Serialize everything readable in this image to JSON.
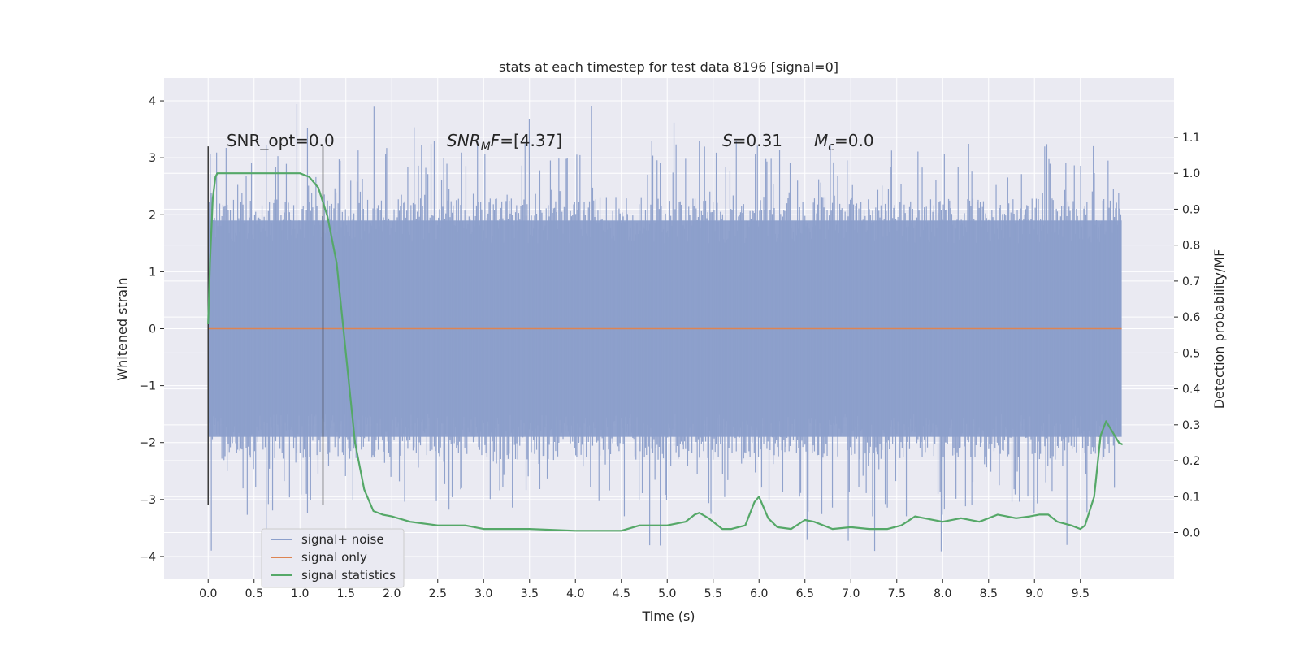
{
  "chart_data": {
    "type": "line",
    "title": "stats at each timestep for test data 8196 [signal=0]",
    "xlabel": "Time (s)",
    "ylabel": "Whitened strain",
    "y2label": "Detection probability/MF",
    "xlim": [
      -0.48,
      10.52
    ],
    "ylim": [
      -4.4,
      4.4
    ],
    "y2lim": [
      -0.13,
      1.265
    ],
    "xticks": [
      0.0,
      0.5,
      1.0,
      1.5,
      2.0,
      2.5,
      3.0,
      3.5,
      4.0,
      4.5,
      5.0,
      5.5,
      6.0,
      6.5,
      7.0,
      7.5,
      8.0,
      8.5,
      9.0,
      9.5
    ],
    "xtick_labels": [
      "0.0",
      "0.5",
      "1.0",
      "1.5",
      "2.0",
      "2.5",
      "3.0",
      "3.5",
      "4.0",
      "4.5",
      "5.0",
      "5.5",
      "6.0",
      "6.5",
      "7.0",
      "7.5",
      "8.0",
      "8.5",
      "9.0",
      "9.5"
    ],
    "yticks": [
      4,
      3,
      2,
      1,
      0,
      -1,
      -2,
      -3,
      -4
    ],
    "ytick_labels": [
      "4",
      "3",
      "2",
      "1",
      "0",
      "−1",
      "−2",
      "−3",
      "−4"
    ],
    "y2ticks": [
      1.1,
      1.0,
      0.9,
      0.8,
      0.7,
      0.6,
      0.5,
      0.4,
      0.3,
      0.2,
      0.1,
      0.0
    ],
    "y2tick_labels": [
      "1.1",
      "1.0",
      "0.9",
      "0.8",
      "0.7",
      "0.6",
      "0.5",
      "0.4",
      "0.3",
      "0.2",
      "0.1",
      "0.0"
    ],
    "grid": true,
    "legend_position": "lower-left",
    "noise_band": {
      "x_start": 0.0,
      "x_end": 9.95,
      "typical_envelope": [
        -1.9,
        1.9
      ],
      "max": 4.05,
      "min": -3.95
    },
    "series": [
      {
        "name": "signal+ noise",
        "color": "#8c9fcb",
        "kind": "noise"
      },
      {
        "name": "signal only",
        "color": "#dd8452",
        "x": [
          0.0,
          9.95
        ],
        "y": [
          0.0,
          0.0
        ]
      },
      {
        "name": "signal statistics",
        "color": "#55a868",
        "axis": "right",
        "x": [
          0.0,
          0.02,
          0.05,
          0.08,
          0.1,
          0.15,
          0.2,
          0.3,
          0.5,
          0.7,
          0.9,
          1.0,
          1.1,
          1.2,
          1.3,
          1.4,
          1.5,
          1.6,
          1.7,
          1.8,
          1.9,
          2.0,
          2.2,
          2.5,
          2.8,
          3.0,
          3.5,
          4.0,
          4.5,
          4.7,
          5.0,
          5.2,
          5.3,
          5.35,
          5.45,
          5.6,
          5.7,
          5.85,
          5.95,
          6.0,
          6.1,
          6.2,
          6.35,
          6.5,
          6.6,
          6.8,
          7.0,
          7.2,
          7.4,
          7.55,
          7.7,
          7.8,
          8.0,
          8.2,
          8.4,
          8.6,
          8.8,
          8.95,
          9.05,
          9.15,
          9.25,
          9.4,
          9.5,
          9.55,
          9.65,
          9.72,
          9.78,
          9.85,
          9.92,
          9.96
        ],
        "y": [
          0.58,
          0.75,
          0.93,
          0.99,
          1.0,
          1.0,
          1.0,
          1.0,
          1.0,
          1.0,
          1.0,
          1.0,
          0.99,
          0.96,
          0.88,
          0.75,
          0.5,
          0.25,
          0.12,
          0.06,
          0.05,
          0.045,
          0.03,
          0.02,
          0.02,
          0.01,
          0.01,
          0.005,
          0.005,
          0.02,
          0.02,
          0.03,
          0.05,
          0.055,
          0.04,
          0.01,
          0.01,
          0.02,
          0.085,
          0.1,
          0.04,
          0.015,
          0.01,
          0.035,
          0.03,
          0.01,
          0.015,
          0.01,
          0.01,
          0.02,
          0.045,
          0.04,
          0.03,
          0.04,
          0.03,
          0.05,
          0.04,
          0.045,
          0.05,
          0.05,
          0.03,
          0.02,
          0.01,
          0.02,
          0.1,
          0.27,
          0.31,
          0.28,
          0.25,
          0.245
        ]
      }
    ],
    "markers_vertical": [
      {
        "x": 0.0,
        "y_range": [
          -3.1,
          3.2
        ]
      },
      {
        "x": 1.25,
        "y_range": [
          -3.1,
          3.2
        ]
      }
    ],
    "annotations": [
      {
        "id": "snr_opt",
        "text": "SNR_opt=0.0",
        "x": 0.2,
        "y": 3.2
      },
      {
        "id": "snr_mf",
        "base": "SNR",
        "sub": "M",
        "tail": "F=[4.37]",
        "x": 2.6,
        "y": 3.2
      },
      {
        "id": "s_stat",
        "var": "S",
        "tail": "=0.31",
        "x": 5.6,
        "y": 3.2
      },
      {
        "id": "mc",
        "base": "M",
        "sub": "c",
        "tail": "=0.0",
        "x": 6.6,
        "y": 3.2
      }
    ]
  }
}
